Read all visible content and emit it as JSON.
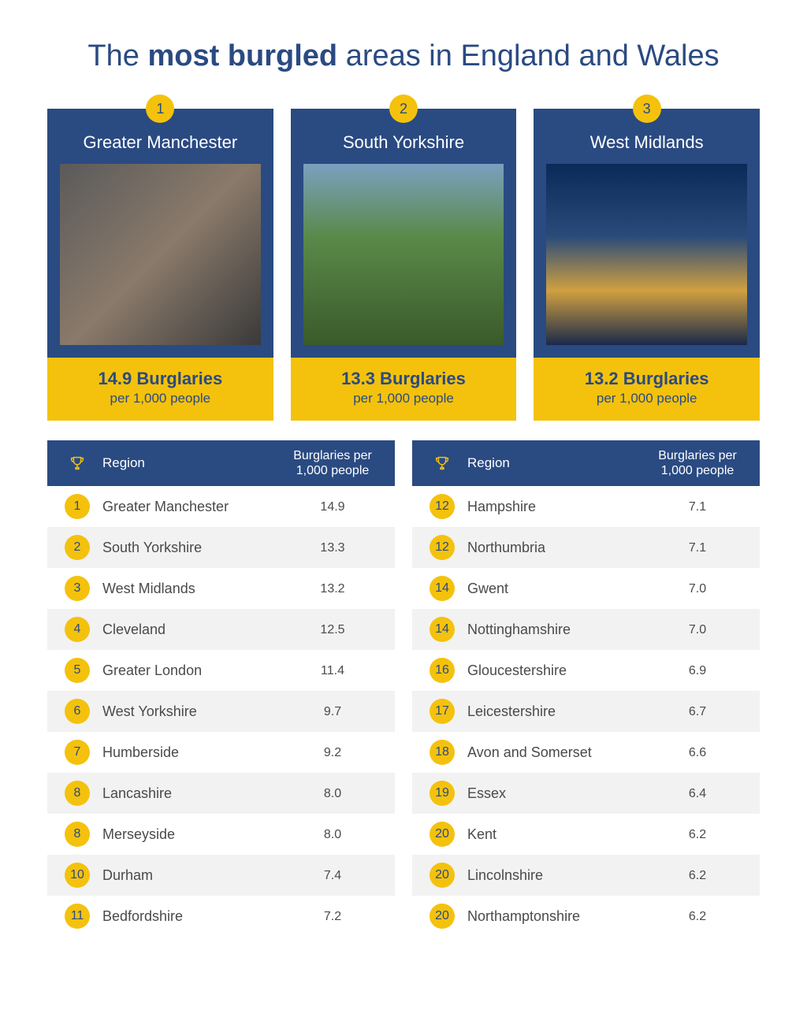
{
  "colors": {
    "primary_blue": "#2a4a82",
    "accent_yellow": "#f4c20d",
    "title_color": "#2a4a82",
    "card_bg": "#2a4a82",
    "card_bottom_bg": "#f4c20d",
    "card_text_white": "#ffffff",
    "card_bottom_text": "#2a4a82",
    "table_header_bg": "#2a4a82",
    "table_header_text": "#ffffff",
    "row_odd_bg": "#ffffff",
    "row_even_bg": "#f2f2f2",
    "row_text": "#4a4a4a",
    "rank_circle_bg": "#f4c20d",
    "rank_circle_text": "#2a4a82"
  },
  "title": {
    "pre": "The ",
    "bold": "most burgled",
    "post": " areas in England and Wales"
  },
  "stat_unit_label": "Burglaries",
  "stat_sub_label": "per 1,000 people",
  "table_headers": {
    "region": "Region",
    "value_line1": "Burglaries per",
    "value_line2": "1,000 people"
  },
  "top3": [
    {
      "rank": "1",
      "name": "Greater Manchester",
      "value": "14.9",
      "img_class": "ph1"
    },
    {
      "rank": "2",
      "name": "South Yorkshire",
      "value": "13.3",
      "img_class": "ph2"
    },
    {
      "rank": "3",
      "name": "West Midlands",
      "value": "13.2",
      "img_class": "ph3"
    }
  ],
  "table_left": [
    {
      "rank": "1",
      "region": "Greater Manchester",
      "value": "14.9"
    },
    {
      "rank": "2",
      "region": "South Yorkshire",
      "value": "13.3"
    },
    {
      "rank": "3",
      "region": "West Midlands",
      "value": "13.2"
    },
    {
      "rank": "4",
      "region": "Cleveland",
      "value": "12.5"
    },
    {
      "rank": "5",
      "region": "Greater London",
      "value": "11.4"
    },
    {
      "rank": "6",
      "region": "West Yorkshire",
      "value": "9.7"
    },
    {
      "rank": "7",
      "region": "Humberside",
      "value": "9.2"
    },
    {
      "rank": "8",
      "region": "Lancashire",
      "value": "8.0"
    },
    {
      "rank": "8",
      "region": "Merseyside",
      "value": "8.0"
    },
    {
      "rank": "10",
      "region": "Durham",
      "value": "7.4"
    },
    {
      "rank": "11",
      "region": "Bedfordshire",
      "value": "7.2"
    }
  ],
  "table_right": [
    {
      "rank": "12",
      "region": "Hampshire",
      "value": "7.1"
    },
    {
      "rank": "12",
      "region": "Northumbria",
      "value": "7.1"
    },
    {
      "rank": "14",
      "region": "Gwent",
      "value": "7.0"
    },
    {
      "rank": "14",
      "region": "Nottinghamshire",
      "value": "7.0"
    },
    {
      "rank": "16",
      "region": "Gloucestershire",
      "value": "6.9"
    },
    {
      "rank": "17",
      "region": "Leicestershire",
      "value": "6.7"
    },
    {
      "rank": "18",
      "region": "Avon and Somerset",
      "value": "6.6"
    },
    {
      "rank": "19",
      "region": "Essex",
      "value": "6.4"
    },
    {
      "rank": "20",
      "region": "Kent",
      "value": "6.2"
    },
    {
      "rank": "20",
      "region": "Lincolnshire",
      "value": "6.2"
    },
    {
      "rank": "20",
      "region": "Northamptonshire",
      "value": "6.2"
    }
  ]
}
